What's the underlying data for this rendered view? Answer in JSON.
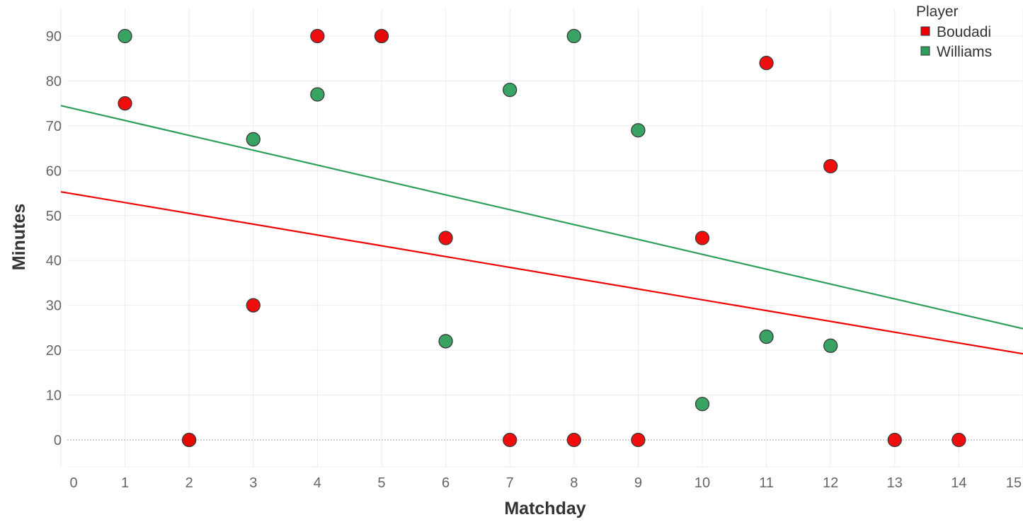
{
  "chart_data": {
    "type": "scatter",
    "xlabel": "Matchday",
    "ylabel": "Minutes",
    "xlim": [
      0,
      15
    ],
    "ylim": [
      -6,
      96
    ],
    "x_ticks": [
      0,
      1,
      2,
      3,
      4,
      5,
      6,
      7,
      8,
      9,
      10,
      11,
      12,
      13,
      14,
      15
    ],
    "y_ticks": [
      0,
      10,
      20,
      30,
      40,
      50,
      60,
      70,
      80,
      90
    ],
    "grid": true,
    "legend": {
      "title": "Player",
      "position": "top-right"
    },
    "series": [
      {
        "name": "Boudadi",
        "color": "#ee0000",
        "points": [
          {
            "x": 1,
            "y": 75
          },
          {
            "x": 2,
            "y": 0
          },
          {
            "x": 3,
            "y": 30
          },
          {
            "x": 4,
            "y": 90
          },
          {
            "x": 5,
            "y": 90
          },
          {
            "x": 6,
            "y": 45
          },
          {
            "x": 7,
            "y": 0
          },
          {
            "x": 8,
            "y": 0
          },
          {
            "x": 9,
            "y": 0
          },
          {
            "x": 10,
            "y": 45
          },
          {
            "x": 11,
            "y": 84
          },
          {
            "x": 12,
            "y": 61
          },
          {
            "x": 13,
            "y": 0
          },
          {
            "x": 14,
            "y": 0
          }
        ],
        "trend": {
          "x0": 0,
          "y0": 55.3,
          "x1": 15,
          "y1": 19.2
        }
      },
      {
        "name": "Williams",
        "color": "#2e9e5b",
        "points": [
          {
            "x": 1,
            "y": 90
          },
          {
            "x": 2,
            "y": 0
          },
          {
            "x": 3,
            "y": 67
          },
          {
            "x": 4,
            "y": 77
          },
          {
            "x": 5,
            "y": 90
          },
          {
            "x": 6,
            "y": 22
          },
          {
            "x": 7,
            "y": 78
          },
          {
            "x": 8,
            "y": 90
          },
          {
            "x": 9,
            "y": 69
          },
          {
            "x": 10,
            "y": 8
          },
          {
            "x": 11,
            "y": 23
          },
          {
            "x": 12,
            "y": 21
          }
        ],
        "trend": {
          "x0": 0,
          "y0": 74.5,
          "x1": 15,
          "y1": 24.8
        }
      }
    ]
  }
}
